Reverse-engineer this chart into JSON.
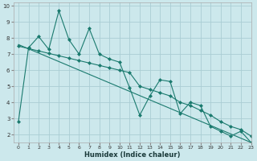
{
  "xlabel": "Humidex (Indice chaleur)",
  "background_color": "#cce8ec",
  "grid_color": "#aacdd4",
  "line_color": "#1a7a6e",
  "xlim": [
    -0.5,
    23
  ],
  "ylim": [
    1.5,
    10.2
  ],
  "yticks": [
    2,
    3,
    4,
    5,
    6,
    7,
    8,
    9,
    10
  ],
  "xticks": [
    0,
    1,
    2,
    3,
    4,
    5,
    6,
    7,
    8,
    9,
    10,
    11,
    12,
    13,
    14,
    15,
    16,
    17,
    18,
    19,
    20,
    21,
    22,
    23
  ],
  "series1_x": [
    0,
    1,
    2,
    3,
    4,
    5,
    6,
    7,
    8,
    9,
    10,
    11,
    12,
    13,
    14,
    15,
    16,
    17,
    18,
    19,
    20,
    21,
    22,
    23
  ],
  "series1_y": [
    2.8,
    7.4,
    8.1,
    7.3,
    9.7,
    7.9,
    7.0,
    8.6,
    7.0,
    6.7,
    6.5,
    4.9,
    3.2,
    4.4,
    5.4,
    5.3,
    3.3,
    4.0,
    3.8,
    2.5,
    2.2,
    1.9,
    2.2,
    1.5
  ],
  "series2_x": [
    0,
    1,
    2,
    3,
    4,
    5,
    6,
    7,
    8,
    9,
    10,
    11,
    12,
    13,
    14,
    15,
    16,
    17,
    18,
    19,
    20,
    21,
    22,
    23
  ],
  "series2_y": [
    7.5,
    7.35,
    7.2,
    7.05,
    6.9,
    6.75,
    6.6,
    6.45,
    6.3,
    6.15,
    6.0,
    5.85,
    5.0,
    4.8,
    4.6,
    4.4,
    4.0,
    3.8,
    3.5,
    3.2,
    2.8,
    2.5,
    2.3,
    1.9
  ],
  "series3_x": [
    0,
    23
  ],
  "series3_y": [
    7.6,
    1.5
  ],
  "marker": "D",
  "marker_size": 2,
  "line_width": 0.8
}
